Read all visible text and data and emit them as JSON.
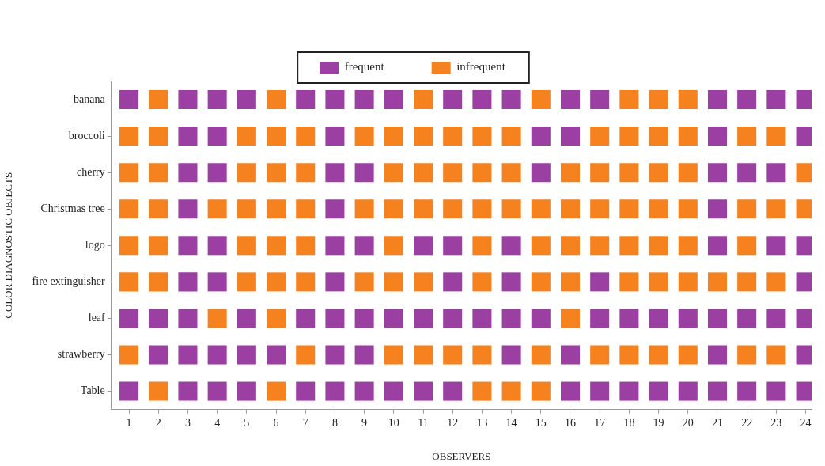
{
  "chart_data": {
    "type": "scatter",
    "orientation": "horizontal",
    "xlabel": "OBSERVERS",
    "ylabel": "COLOR DIAGNOSTIC OBJECTS",
    "categories": [
      "banana",
      "broccoli",
      "cherry",
      "Christmas tree",
      "logo",
      "fire extinguisher",
      "leaf",
      "strawberry",
      "Table"
    ],
    "xlim": [
      0.4,
      24.2
    ],
    "xticks": [
      1,
      2,
      3,
      4,
      5,
      6,
      7,
      8,
      9,
      10,
      11,
      12,
      13,
      14,
      15,
      16,
      17,
      18,
      19,
      20,
      21,
      22,
      23,
      24
    ],
    "marker": "square",
    "legend": "top",
    "series": [
      {
        "name": "frequent",
        "color": "#9b3fa3",
        "x": [
          "banana",
          "banana",
          "banana",
          "banana",
          "banana",
          "banana",
          "banana",
          "banana",
          "banana",
          "banana",
          "banana",
          "banana",
          "banana",
          "banana",
          "banana",
          "banana",
          "banana",
          "broccoli",
          "broccoli",
          "broccoli",
          "broccoli",
          "broccoli",
          "broccoli",
          "broccoli",
          "cherry",
          "cherry",
          "cherry",
          "cherry",
          "cherry",
          "cherry",
          "cherry",
          "cherry",
          "Christmas tree",
          "Christmas tree",
          "Christmas tree",
          "logo",
          "logo",
          "logo",
          "logo",
          "logo",
          "logo",
          "logo",
          "logo",
          "logo",
          "logo",
          "fire extinguisher",
          "fire extinguisher",
          "fire extinguisher",
          "fire extinguisher",
          "fire extinguisher",
          "fire extinguisher",
          "fire extinguisher",
          "leaf",
          "leaf",
          "leaf",
          "leaf",
          "leaf",
          "leaf",
          "leaf",
          "leaf",
          "leaf",
          "leaf",
          "leaf",
          "leaf",
          "leaf",
          "leaf",
          "leaf",
          "leaf",
          "leaf",
          "leaf",
          "leaf",
          "leaf",
          "leaf",
          "strawberry",
          "strawberry",
          "strawberry",
          "strawberry",
          "strawberry",
          "strawberry",
          "strawberry",
          "strawberry",
          "strawberry",
          "strawberry",
          "strawberry",
          "Table",
          "Table",
          "Table",
          "Table",
          "Table",
          "Table",
          "Table",
          "Table",
          "Table",
          "Table",
          "Table",
          "Table",
          "Table",
          "Table",
          "Table",
          "Table",
          "Table",
          "Table",
          "Table"
        ],
        "values": [
          1,
          3,
          4,
          5,
          7,
          8,
          9,
          10,
          12,
          13,
          14,
          16,
          17,
          21,
          22,
          23,
          24,
          3,
          4,
          8,
          15,
          16,
          21,
          24,
          3,
          4,
          8,
          9,
          15,
          21,
          22,
          23,
          3,
          8,
          21,
          3,
          4,
          8,
          9,
          11,
          12,
          14,
          21,
          23,
          24,
          3,
          4,
          8,
          12,
          14,
          17,
          24,
          1,
          2,
          3,
          5,
          7,
          8,
          9,
          10,
          11,
          12,
          13,
          14,
          15,
          17,
          18,
          19,
          20,
          21,
          22,
          23,
          24,
          2,
          3,
          4,
          5,
          6,
          8,
          9,
          14,
          16,
          21,
          24,
          1,
          3,
          4,
          5,
          7,
          8,
          9,
          10,
          11,
          12,
          16,
          17,
          18,
          19,
          20,
          21,
          22,
          23,
          24
        ]
      },
      {
        "name": "infrequent",
        "color": "#f5811f",
        "x": [
          "banana",
          "banana",
          "banana",
          "banana",
          "banana",
          "banana",
          "banana",
          "broccoli",
          "broccoli",
          "broccoli",
          "broccoli",
          "broccoli",
          "broccoli",
          "broccoli",
          "broccoli",
          "broccoli",
          "broccoli",
          "broccoli",
          "broccoli",
          "broccoli",
          "broccoli",
          "broccoli",
          "broccoli",
          "broccoli",
          "cherry",
          "cherry",
          "cherry",
          "cherry",
          "cherry",
          "cherry",
          "cherry",
          "cherry",
          "cherry",
          "cherry",
          "cherry",
          "cherry",
          "cherry",
          "cherry",
          "cherry",
          "cherry",
          "Christmas tree",
          "Christmas tree",
          "Christmas tree",
          "Christmas tree",
          "Christmas tree",
          "Christmas tree",
          "Christmas tree",
          "Christmas tree",
          "Christmas tree",
          "Christmas tree",
          "Christmas tree",
          "Christmas tree",
          "Christmas tree",
          "Christmas tree",
          "Christmas tree",
          "Christmas tree",
          "Christmas tree",
          "Christmas tree",
          "Christmas tree",
          "Christmas tree",
          "Christmas tree",
          "logo",
          "logo",
          "logo",
          "logo",
          "logo",
          "logo",
          "logo",
          "logo",
          "logo",
          "logo",
          "logo",
          "logo",
          "logo",
          "logo",
          "fire extinguisher",
          "fire extinguisher",
          "fire extinguisher",
          "fire extinguisher",
          "fire extinguisher",
          "fire extinguisher",
          "fire extinguisher",
          "fire extinguisher",
          "fire extinguisher",
          "fire extinguisher",
          "fire extinguisher",
          "fire extinguisher",
          "fire extinguisher",
          "fire extinguisher",
          "fire extinguisher",
          "fire extinguisher",
          "fire extinguisher",
          "leaf",
          "leaf",
          "leaf",
          "strawberry",
          "strawberry",
          "strawberry",
          "strawberry",
          "strawberry",
          "strawberry",
          "strawberry",
          "strawberry",
          "strawberry",
          "strawberry",
          "strawberry",
          "strawberry",
          "strawberry",
          "Table",
          "Table",
          "Table",
          "Table",
          "Table"
        ],
        "values": [
          2,
          6,
          11,
          15,
          18,
          19,
          20,
          1,
          2,
          5,
          6,
          7,
          9,
          10,
          11,
          12,
          13,
          14,
          17,
          18,
          19,
          20,
          22,
          23,
          1,
          2,
          5,
          6,
          7,
          10,
          11,
          12,
          13,
          14,
          16,
          17,
          18,
          19,
          20,
          24,
          1,
          2,
          4,
          5,
          6,
          7,
          9,
          10,
          11,
          12,
          13,
          14,
          15,
          16,
          17,
          18,
          19,
          20,
          22,
          23,
          24,
          1,
          2,
          5,
          6,
          7,
          10,
          13,
          15,
          16,
          17,
          18,
          19,
          20,
          22,
          1,
          2,
          5,
          6,
          7,
          9,
          10,
          11,
          13,
          15,
          16,
          18,
          19,
          20,
          21,
          22,
          23,
          4,
          6,
          16,
          1,
          7,
          10,
          11,
          12,
          13,
          15,
          17,
          18,
          19,
          20,
          22,
          23,
          2,
          6,
          13,
          14,
          15
        ]
      }
    ]
  }
}
